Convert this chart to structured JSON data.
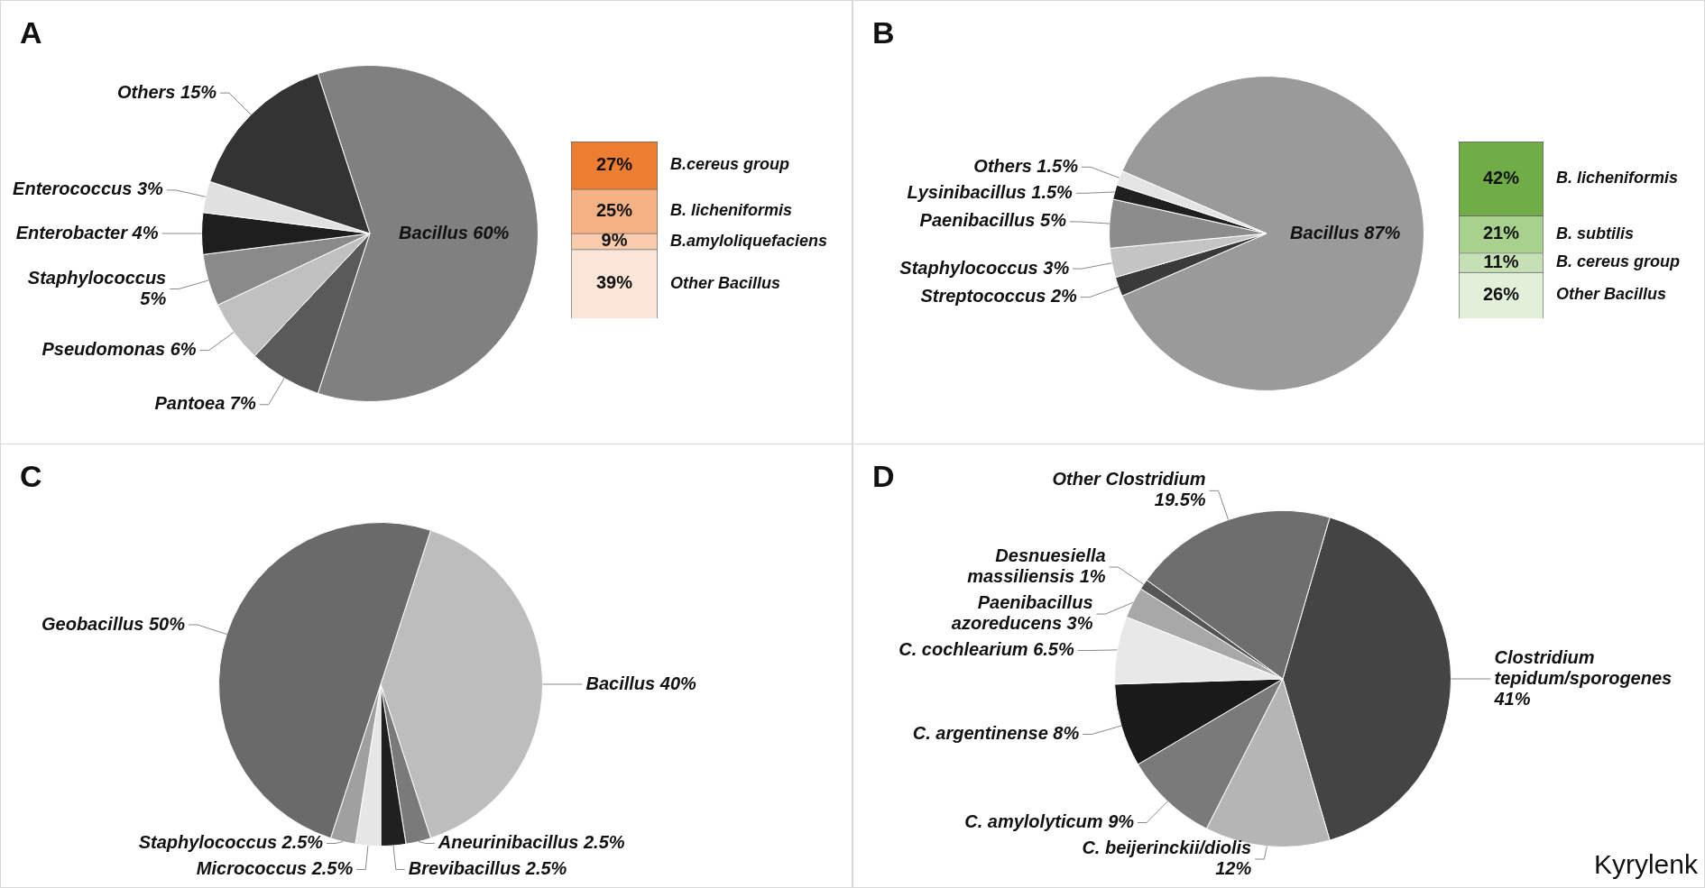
{
  "chart_data": [
    {
      "type": "pie",
      "title": "A",
      "categories": [
        "Bacillus",
        "Pantoea",
        "Pseudomonas",
        "Staphylococcus",
        "Enterobacter",
        "Enterococcus",
        "Others"
      ],
      "values": [
        60,
        7,
        6,
        5,
        4,
        3,
        15
      ],
      "value_labels": [
        "60%",
        "7%",
        "6%",
        "5%",
        "4%",
        "3%",
        "15%"
      ],
      "colors": [
        "#808080",
        "#5a5a5a",
        "#c0c0c0",
        "#8a8a8a",
        "#1e1e1e",
        "#e0e0e0",
        "#333333"
      ]
    },
    {
      "type": "bar",
      "stacked": true,
      "categories": [
        null
      ],
      "series": [
        {
          "name": "Other Bacillus",
          "color": "#fbe5d6",
          "values": [
            39
          ],
          "value_labels": [
            "39%"
          ]
        },
        {
          "name": "B.amyloliquefaciens",
          "color": "#f8cbad",
          "values": [
            9
          ],
          "value_labels": [
            "9%"
          ]
        },
        {
          "name": "B. licheniformis",
          "color": "#f4b183",
          "values": [
            25
          ],
          "value_labels": [
            "25%"
          ]
        },
        {
          "name": "B.cereus group",
          "color": "#ed7d31",
          "values": [
            27
          ],
          "value_labels": [
            "27%"
          ]
        }
      ]
    },
    {
      "type": "pie",
      "title": "B",
      "categories": [
        "Bacillus",
        "Streptococcus",
        "Staphylococcus",
        "Paenibacillus",
        "Lysinibacillus",
        "Others"
      ],
      "values": [
        87,
        2,
        3,
        5,
        1.5,
        1.5
      ],
      "value_labels": [
        "87%",
        "2%",
        "3%",
        "5%",
        "1.5%",
        "1.5%"
      ],
      "colors": [
        "#9a9a9a",
        "#3a3a3a",
        "#c4c4c4",
        "#8c8c8c",
        "#202020",
        "#e4e4e4"
      ]
    },
    {
      "type": "bar",
      "stacked": true,
      "categories": [
        null
      ],
      "series": [
        {
          "name": "Other Bacillus",
          "color": "#e2f0d9",
          "values": [
            26
          ],
          "value_labels": [
            "26%"
          ]
        },
        {
          "name": "B. cereus group",
          "color": "#c5e0b4",
          "values": [
            11
          ],
          "value_labels": [
            "11%"
          ]
        },
        {
          "name": "B. subtilis",
          "color": "#a9d18e",
          "values": [
            21
          ],
          "value_labels": [
            "21%"
          ]
        },
        {
          "name": "B. licheniformis",
          "color": "#70ad47",
          "values": [
            42
          ],
          "value_labels": [
            "42%"
          ]
        }
      ]
    },
    {
      "type": "pie",
      "title": "C",
      "categories": [
        "Bacillus",
        "Aneurinibacillus",
        "Brevibacillus",
        "Micrococcus",
        "Staphylococcus",
        "Geobacillus"
      ],
      "values": [
        40,
        2.5,
        2.5,
        2.5,
        2.5,
        50
      ],
      "value_labels": [
        "40%",
        "2.5%",
        "2.5%",
        "2.5%",
        "2.5%",
        "50%"
      ],
      "colors": [
        "#bdbdbd",
        "#7a7a7a",
        "#202020",
        "#e6e6e6",
        "#a0a0a0",
        "#6a6a6a"
      ]
    },
    {
      "type": "pie",
      "title": "D",
      "categories": [
        "Clostridium tepidum/sporogenes",
        "C. beijerinckii/diolis",
        "C. amylolyticum",
        "C. argentinense",
        "C. cochlearium",
        "Paenibacillus azoreducens",
        "Desnuesiella massiliensis",
        "Other Clostridium"
      ],
      "values": [
        41,
        12,
        9,
        8,
        6.5,
        3,
        1,
        19.5
      ],
      "value_labels": [
        "41%",
        "12%",
        "9%",
        "8%",
        "6.5%",
        "3%",
        "1%",
        "19.5%"
      ],
      "colors": [
        "#444444",
        "#b5b5b5",
        "#7a7a7a",
        "#1a1a1a",
        "#e8e8e8",
        "#a8a8a8",
        "#555555",
        "#6e6e6e"
      ],
      "annotations": [
        "Kyrylenk"
      ]
    }
  ]
}
